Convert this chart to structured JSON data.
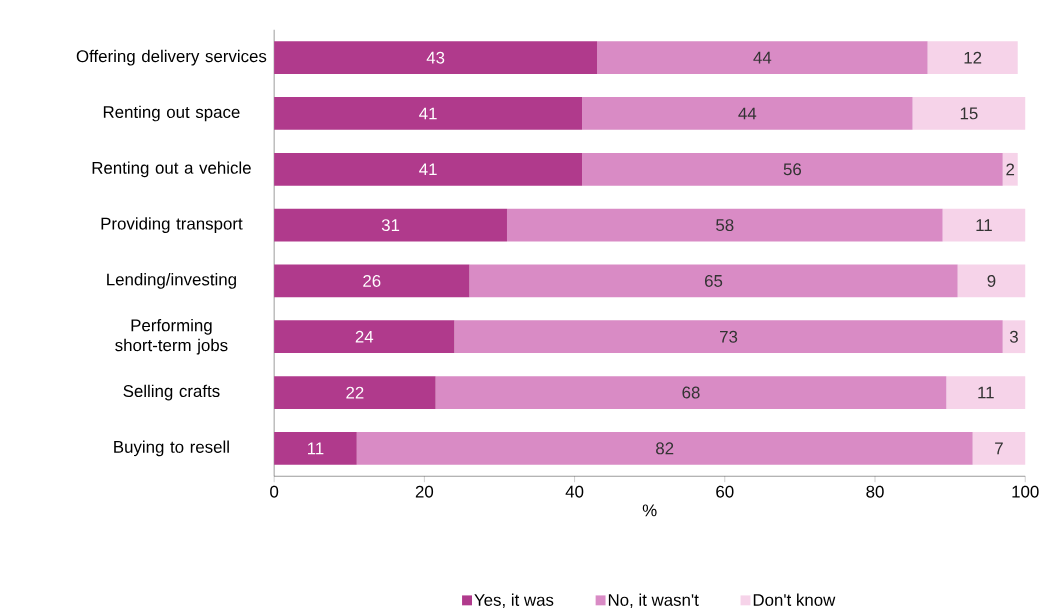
{
  "chart_data": {
    "type": "bar",
    "orientation": "horizontal",
    "stacked": true,
    "legend": "bottom",
    "xlabel": "%",
    "xlim": [
      0,
      100
    ],
    "xticks": [
      0,
      20,
      40,
      60,
      80,
      100
    ],
    "categories": [
      "Offering delivery services",
      "Renting out space",
      "Renting out a vehicle",
      "Providing transport",
      "Lending/investing",
      "Performing short-term jobs",
      "Selling crafts",
      "Buying to resell"
    ],
    "series": [
      {
        "name": "Yes, it was",
        "color": "#b03a8c",
        "values": [
          43,
          41,
          41,
          31,
          26,
          24,
          21.5,
          11
        ],
        "value_labels": [
          "43",
          "41",
          "41",
          "31",
          "26",
          "24",
          "22",
          "11"
        ]
      },
      {
        "name": "No, it wasn't",
        "color": "#d98bc5",
        "values": [
          44,
          44,
          56,
          58,
          65,
          73,
          68,
          82
        ],
        "value_labels": [
          "44",
          "44",
          "56",
          "58",
          "65",
          "73",
          "68",
          "82"
        ]
      },
      {
        "name": "Don't know",
        "color": "#f6d3e9",
        "values": [
          12,
          15,
          2,
          11,
          9,
          3,
          10.5,
          7
        ],
        "value_labels": [
          "12",
          "15",
          "2",
          "11",
          "9",
          "3",
          "11",
          "7"
        ]
      }
    ]
  }
}
